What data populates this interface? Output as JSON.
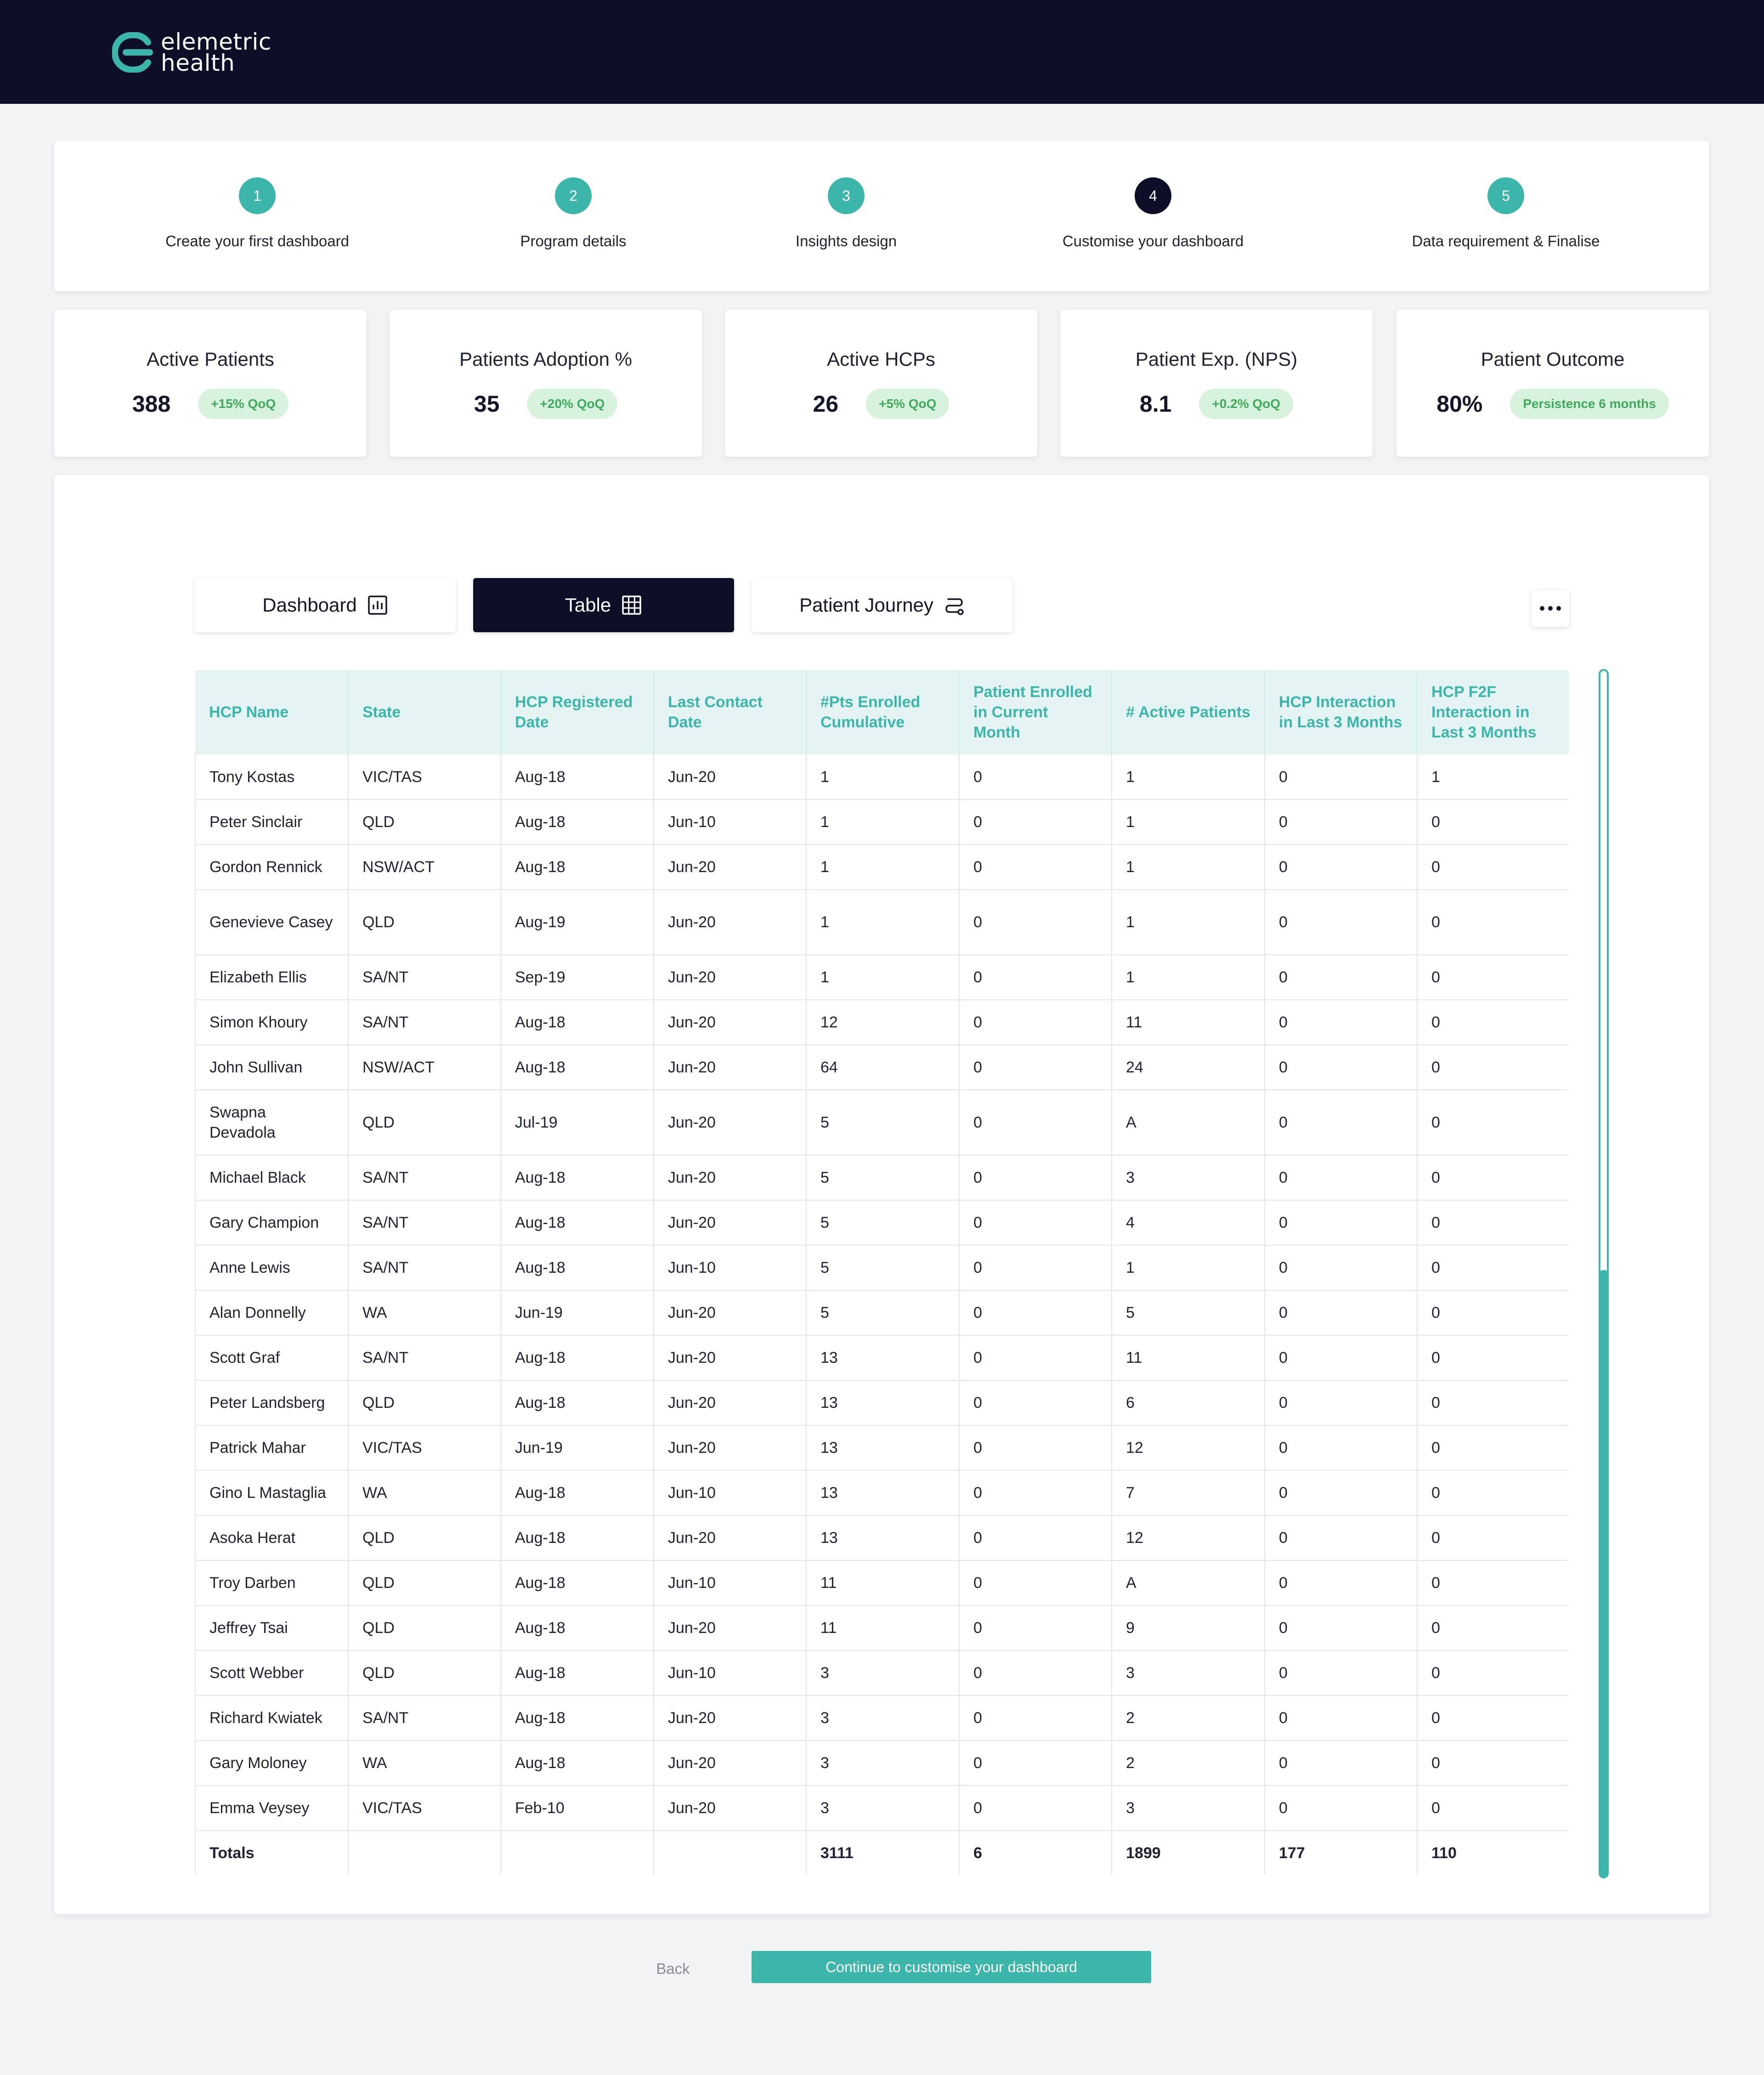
{
  "brand": {
    "name_line1": "elemetric",
    "name_line2": "health",
    "icon": "elemetric-logo-icon"
  },
  "steps": [
    {
      "number": "1",
      "label": "Create your first dashboard",
      "state": "done"
    },
    {
      "number": "2",
      "label": "Program details",
      "state": "done"
    },
    {
      "number": "3",
      "label": "Insights design",
      "state": "done"
    },
    {
      "number": "4",
      "label": "Customise your dashboard",
      "state": "current"
    },
    {
      "number": "5",
      "label": "Data requirement & Finalise",
      "state": "done"
    }
  ],
  "kpis": [
    {
      "title": "Active Patients",
      "value": "388",
      "badge": "+15% QoQ"
    },
    {
      "title": "Patients Adoption %",
      "value": "35",
      "badge": "+20% QoQ"
    },
    {
      "title": "Active HCPs",
      "value": "26",
      "badge": "+5% QoQ"
    },
    {
      "title": "Patient Exp. (NPS)",
      "value": "8.1",
      "badge": "+0.2% QoQ"
    },
    {
      "title": "Patient Outcome",
      "value": "80%",
      "badge": "Persistence 6 months"
    }
  ],
  "tabs": [
    {
      "label": "Dashboard",
      "icon": "bar-chart-icon"
    },
    {
      "label": "Table",
      "icon": "grid-icon",
      "active": true
    },
    {
      "label": "Patient Journey",
      "icon": "route-icon"
    }
  ],
  "more_menu_icon": "more-horizontal-icon",
  "table": {
    "headers": [
      "HCP Name",
      "State",
      "HCP Registered Date",
      "Last Contact Date",
      "#Pts Enrolled Cumulative",
      "Patient Enrolled in Current Month",
      "# Active Patients",
      "HCP Interaction in Last 3 Months",
      "HCP F2F Interaction in Last 3 Months"
    ],
    "rows": [
      [
        "Tony Kostas",
        "VIC/TAS",
        "Aug-18",
        "Jun-20",
        "1",
        "0",
        "1",
        "0",
        "1"
      ],
      [
        "Peter Sinclair",
        "QLD",
        "Aug-18",
        "Jun-10",
        "1",
        "0",
        "1",
        "0",
        "0"
      ],
      [
        "Gordon Rennick",
        "NSW/ACT",
        "Aug-18",
        "Jun-20",
        "1",
        "0",
        "1",
        "0",
        "0"
      ],
      [
        "Genevieve Casey",
        "QLD",
        "Aug-19",
        "Jun-20",
        "1",
        "0",
        "1",
        "0",
        "0"
      ],
      [
        "Elizabeth Ellis",
        "SA/NT",
        "Sep-19",
        "Jun-20",
        "1",
        "0",
        "1",
        "0",
        "0"
      ],
      [
        "Simon Khoury",
        "SA/NT",
        "Aug-18",
        "Jun-20",
        "12",
        "0",
        "11",
        "0",
        "0"
      ],
      [
        "John Sullivan",
        "NSW/ACT",
        "Aug-18",
        "Jun-20",
        "64",
        "0",
        "24",
        "0",
        "0"
      ],
      [
        "Swapna Devadola",
        "QLD",
        "Jul-19",
        "Jun-20",
        "5",
        "0",
        "A",
        "0",
        "0"
      ],
      [
        "Michael Black",
        "SA/NT",
        "Aug-18",
        "Jun-20",
        "5",
        "0",
        "3",
        "0",
        "0"
      ],
      [
        "Gary Champion",
        "SA/NT",
        "Aug-18",
        "Jun-20",
        "5",
        "0",
        "4",
        "0",
        "0"
      ],
      [
        "Anne Lewis",
        "SA/NT",
        "Aug-18",
        "Jun-10",
        "5",
        "0",
        "1",
        "0",
        "0"
      ],
      [
        "Alan Donnelly",
        "WA",
        "Jun-19",
        "Jun-20",
        "5",
        "0",
        "5",
        "0",
        "0"
      ],
      [
        "Scott Graf",
        "SA/NT",
        "Aug-18",
        "Jun-20",
        "13",
        "0",
        "11",
        "0",
        "0"
      ],
      [
        "Peter Landsberg",
        "QLD",
        "Aug-18",
        "Jun-20",
        "13",
        "0",
        "6",
        "0",
        "0"
      ],
      [
        "Patrick Mahar",
        "VIC/TAS",
        "Jun-19",
        "Jun-20",
        "13",
        "0",
        "12",
        "0",
        "0"
      ],
      [
        "Gino L Mastaglia",
        "WA",
        "Aug-18",
        "Jun-10",
        "13",
        "0",
        "7",
        "0",
        "0"
      ],
      [
        "Asoka Herat",
        "QLD",
        "Aug-18",
        "Jun-20",
        "13",
        "0",
        "12",
        "0",
        "0"
      ],
      [
        "Troy Darben",
        "QLD",
        "Aug-18",
        "Jun-10",
        "11",
        "0",
        "A",
        "0",
        "0"
      ],
      [
        "Jeffrey Tsai",
        "QLD",
        "Aug-18",
        "Jun-20",
        "11",
        "0",
        "9",
        "0",
        "0"
      ],
      [
        "Scott Webber",
        "QLD",
        "Aug-18",
        "Jun-10",
        "3",
        "0",
        "3",
        "0",
        "0"
      ],
      [
        "Richard Kwiatek",
        "SA/NT",
        "Aug-18",
        "Jun-20",
        "3",
        "0",
        "2",
        "0",
        "0"
      ],
      [
        "Gary Moloney",
        "WA",
        "Aug-18",
        "Jun-20",
        "3",
        "0",
        "2",
        "0",
        "0"
      ],
      [
        "Emma Veysey",
        "VIC/TAS",
        "Feb-10",
        "Jun-20",
        "3",
        "0",
        "3",
        "0",
        "0"
      ]
    ],
    "totals": [
      "Totals",
      "",
      "",
      "",
      "3111",
      "6",
      "1899",
      "177",
      "110"
    ]
  },
  "footer": {
    "back_label": "Back",
    "continue_label": "Continue to customise your dashboard"
  },
  "colors": {
    "header_bg": "#0d0f29",
    "accent": "#3cb5ab",
    "badge_bg": "#d7f2dd",
    "badge_text": "#3faa5b",
    "page_bg": "#f2f3f5"
  }
}
